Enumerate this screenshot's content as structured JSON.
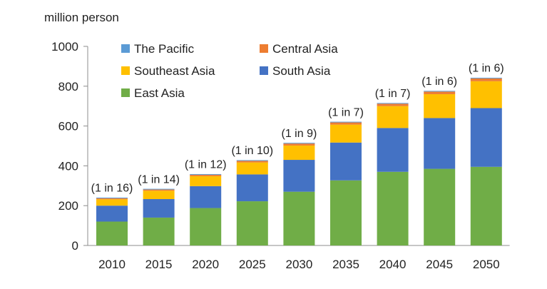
{
  "chart_data": {
    "type": "bar",
    "stacked": true,
    "ylabel": "million person",
    "ylim": [
      0,
      1000
    ],
    "yticks": [
      0,
      200,
      400,
      600,
      800,
      1000
    ],
    "categories": [
      "2010",
      "2015",
      "2020",
      "2025",
      "2030",
      "2035",
      "2040",
      "2045",
      "2050"
    ],
    "series": [
      {
        "name": "East Asia",
        "color": "#70ad47",
        "values": [
          120,
          140,
          188,
          222,
          270,
          327,
          370,
          385,
          395
        ]
      },
      {
        "name": "South Asia",
        "color": "#4472c4",
        "values": [
          80,
          93,
          110,
          135,
          160,
          190,
          220,
          255,
          295
        ]
      },
      {
        "name": "Southeast Asia",
        "color": "#ffc000",
        "values": [
          32,
          42,
          50,
          60,
          72,
          90,
          110,
          120,
          135
        ]
      },
      {
        "name": "Central Asia",
        "color": "#ed7d31",
        "values": [
          5,
          6,
          7,
          8,
          10,
          11,
          12,
          13,
          14
        ]
      },
      {
        "name": "The Pacific",
        "color": "#5b9bd5",
        "values": [
          1,
          1,
          1,
          1,
          1,
          1,
          1,
          1,
          1
        ]
      }
    ],
    "bar_labels": [
      "(1 in 16)",
      "(1 in 14)",
      "(1 in 12)",
      "(1 in 10)",
      "(1 in 9)",
      "(1 in 7)",
      "(1 in 7)",
      "(1 in 6)",
      "(1 in 6)"
    ],
    "legend": [
      {
        "name": "The Pacific",
        "color": "#5b9bd5"
      },
      {
        "name": "Central Asia",
        "color": "#ed7d31"
      },
      {
        "name": "Southeast Asia",
        "color": "#ffc000"
      },
      {
        "name": "South Asia",
        "color": "#4472c4"
      },
      {
        "name": "East Asia",
        "color": "#70ad47"
      }
    ],
    "legend_position": "top-left inside plot",
    "grid": false
  }
}
